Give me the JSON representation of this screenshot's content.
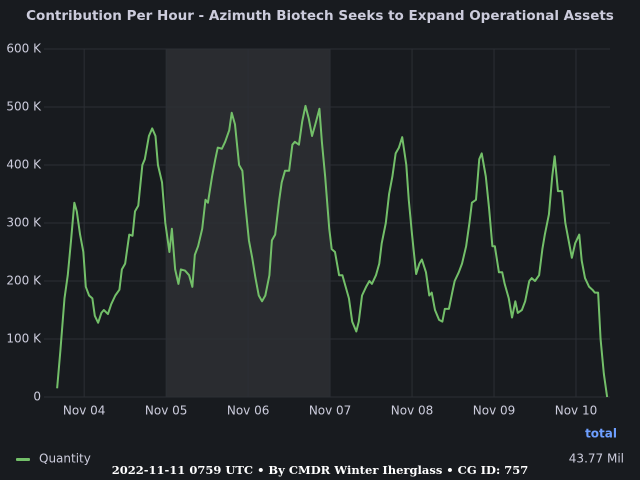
{
  "chart_data": {
    "type": "line",
    "title": "Contribution Per Hour - Azimuth Biotech Seeks to Expand Operational Assets",
    "x": [
      3.67,
      3.71,
      3.76,
      3.8,
      3.84,
      3.88,
      3.91,
      3.95,
      3.99,
      4.02,
      4.06,
      4.1,
      4.13,
      4.17,
      4.21,
      4.24,
      4.29,
      4.33,
      4.38,
      4.43,
      4.46,
      4.5,
      4.55,
      4.59,
      4.62,
      4.66,
      4.71,
      4.74,
      4.79,
      4.83,
      4.87,
      4.9,
      4.95,
      4.99,
      5.04,
      5.07,
      5.11,
      5.15,
      5.18,
      5.23,
      5.28,
      5.32,
      5.35,
      5.39,
      5.44,
      5.48,
      5.51,
      5.56,
      5.6,
      5.63,
      5.68,
      5.72,
      5.77,
      5.8,
      5.84,
      5.89,
      5.93,
      5.96,
      6.01,
      6.05,
      6.09,
      6.13,
      6.17,
      6.21,
      6.26,
      6.29,
      6.33,
      6.38,
      6.41,
      6.45,
      6.5,
      6.54,
      6.57,
      6.62,
      6.66,
      6.7,
      6.74,
      6.78,
      6.82,
      6.87,
      6.9,
      6.94,
      6.99,
      7.02,
      7.06,
      7.11,
      7.15,
      7.18,
      7.23,
      7.27,
      7.32,
      7.35,
      7.39,
      7.44,
      7.48,
      7.51,
      7.56,
      7.6,
      7.63,
      7.68,
      7.72,
      7.76,
      7.8,
      7.84,
      7.88,
      7.93,
      7.96,
      8.0,
      8.05,
      8.09,
      8.12,
      8.17,
      8.21,
      8.24,
      8.28,
      8.33,
      8.37,
      8.4,
      8.45,
      8.49,
      8.52,
      8.57,
      8.61,
      8.66,
      8.7,
      8.73,
      8.78,
      8.82,
      8.85,
      8.9,
      8.94,
      8.98,
      9.01,
      9.06,
      9.1,
      9.13,
      9.18,
      9.22,
      9.26,
      9.29,
      9.34,
      9.38,
      9.43,
      9.46,
      9.5,
      9.55,
      9.59,
      9.62,
      9.67,
      9.71,
      9.74,
      9.78,
      9.83,
      9.87,
      9.91,
      9.95,
      9.99,
      10.04,
      10.07,
      10.11,
      10.16,
      10.2,
      10.23,
      10.27,
      10.3,
      10.34,
      10.38
    ],
    "series": [
      {
        "name": "Quantity",
        "color": "#73bf69",
        "values": [
          15000,
          80000,
          170000,
          210000,
          270000,
          335000,
          320000,
          280000,
          250000,
          190000,
          175000,
          170000,
          140000,
          128000,
          145000,
          150000,
          143000,
          160000,
          175000,
          185000,
          220000,
          230000,
          280000,
          278000,
          320000,
          330000,
          400000,
          410000,
          450000,
          463000,
          450000,
          400000,
          370000,
          300000,
          250000,
          290000,
          220000,
          195000,
          220000,
          218000,
          210000,
          190000,
          245000,
          260000,
          290000,
          340000,
          335000,
          380000,
          410000,
          430000,
          428000,
          440000,
          460000,
          490000,
          470000,
          400000,
          390000,
          340000,
          270000,
          240000,
          205000,
          175000,
          165000,
          175000,
          210000,
          270000,
          280000,
          340000,
          370000,
          390000,
          390000,
          435000,
          440000,
          435000,
          475000,
          502000,
          480000,
          450000,
          470000,
          497000,
          440000,
          380000,
          290000,
          255000,
          250000,
          210000,
          210000,
          195000,
          170000,
          130000,
          113000,
          130000,
          175000,
          190000,
          200000,
          195000,
          210000,
          230000,
          265000,
          300000,
          350000,
          380000,
          420000,
          430000,
          448000,
          400000,
          340000,
          280000,
          212000,
          230000,
          237000,
          215000,
          175000,
          180000,
          150000,
          133000,
          130000,
          152000,
          152000,
          180000,
          200000,
          215000,
          230000,
          260000,
          300000,
          335000,
          340000,
          410000,
          420000,
          380000,
          325000,
          260000,
          260000,
          215000,
          215000,
          195000,
          170000,
          137000,
          165000,
          145000,
          150000,
          165000,
          200000,
          205000,
          200000,
          210000,
          255000,
          280000,
          315000,
          380000,
          415000,
          355000,
          355000,
          300000,
          270000,
          240000,
          265000,
          280000,
          235000,
          205000,
          190000,
          185000,
          180000,
          180000,
          100000,
          40000,
          0
        ]
      }
    ],
    "xlim": [
      3.51,
      10.415
    ],
    "xticks": [
      {
        "value": 4,
        "label": "Nov 04"
      },
      {
        "value": 5,
        "label": "Nov 05"
      },
      {
        "value": 6,
        "label": "Nov 06"
      },
      {
        "value": 7,
        "label": "Nov 07"
      },
      {
        "value": 8,
        "label": "Nov 08"
      },
      {
        "value": 9,
        "label": "Nov 09"
      },
      {
        "value": 10,
        "label": "Nov 10"
      }
    ],
    "ylim": [
      0,
      600000
    ],
    "yticks": [
      {
        "value": 0,
        "label": "0"
      },
      {
        "value": 100000,
        "label": "100 K"
      },
      {
        "value": 200000,
        "label": "200 K"
      },
      {
        "value": 300000,
        "label": "300 K"
      },
      {
        "value": 400000,
        "label": "400 K"
      },
      {
        "value": 500000,
        "label": "500 K"
      },
      {
        "value": 600000,
        "label": "600 K"
      }
    ],
    "grid": true,
    "shaded_region": [
      5,
      7
    ],
    "legend": {
      "header": "total",
      "value": "43.77 Mil"
    },
    "footer": "2022-11-11 0759 UTC • By CMDR Winter Iherglass • CG ID: 757"
  }
}
